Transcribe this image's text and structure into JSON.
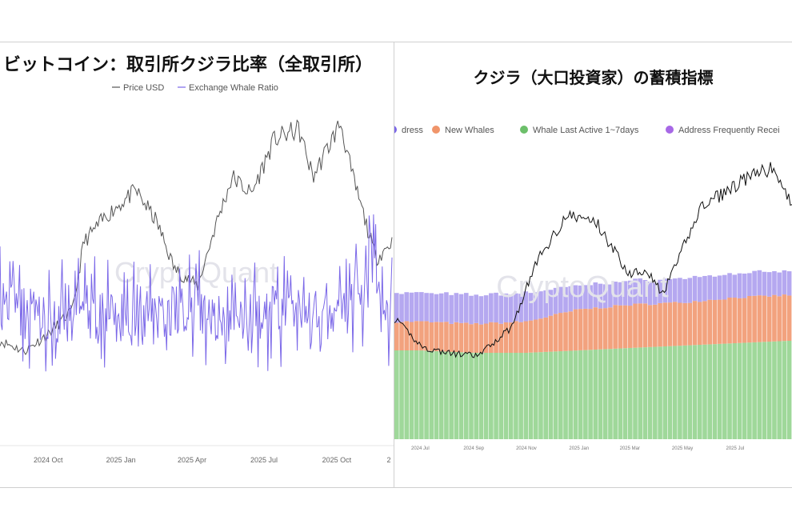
{
  "left": {
    "title": "ビットコイン：取引所クジラ比率（全取引所）",
    "watermark": "CryptoQuant",
    "colors": {
      "price": "#555555",
      "ratio": "#7b68e8"
    },
    "chart_data": {
      "type": "line",
      "series": [
        {
          "name": "Price USD",
          "x": [
            "2024-08-01",
            "2024-09-01",
            "2024-10-01",
            "2024-11-01",
            "2024-11-15",
            "2024-12-15",
            "2025-01-20",
            "2025-02-15",
            "2025-03-10",
            "2025-04-08",
            "2025-05-01",
            "2025-05-22",
            "2025-06-15",
            "2025-07-14",
            "2025-08-14",
            "2025-09-01",
            "2025-10-06",
            "2025-10-20",
            "2025-11-20",
            "2025-12-10"
          ],
          "values": [
            61000,
            58000,
            63000,
            70000,
            90000,
            98000,
            105000,
            96000,
            82000,
            77000,
            95000,
            109000,
            104000,
            120000,
            123000,
            109000,
            125000,
            110000,
            85000,
            90000
          ]
        },
        {
          "name": "Exchange Whale Ratio",
          "x": [
            "2024-08-01",
            "2024-10-01",
            "2024-12-01",
            "2025-02-01",
            "2025-04-01",
            "2025-06-01",
            "2025-08-01",
            "2025-10-01",
            "2025-11-01",
            "2025-12-10"
          ],
          "values": [
            0.45,
            0.43,
            0.44,
            0.42,
            0.45,
            0.43,
            0.44,
            0.42,
            0.48,
            0.44
          ]
        }
      ],
      "x_ticks": [
        "2024 Oct",
        "2025 Jan",
        "2025 Apr",
        "2025 Jul",
        "2025 Oct",
        "2"
      ]
    }
  },
  "right": {
    "title": "クジラ（大口投資家）の蓄積指標",
    "watermark": "CryptoQuant",
    "colors": {
      "green": "#9fd89a",
      "orange": "#f2a27e",
      "purple": "#b5a8f0",
      "price": "#111111"
    },
    "legend": [
      {
        "label": "dress",
        "color": "#7b68e8"
      },
      {
        "label": "New Whales",
        "color": "#f0956a"
      },
      {
        "label": "Whale Last Active 1~7days",
        "color": "#6cbf6a"
      },
      {
        "label": "Address Frequently Recei",
        "color": "#a768e6"
      }
    ],
    "chart_data": {
      "type": "area",
      "x": [
        "2024-06",
        "2024-07",
        "2024-09",
        "2024-11",
        "2025-01",
        "2025-03",
        "2025-05",
        "2025-07",
        "2025-09"
      ],
      "series": [
        {
          "name": "Whale Last Active 1~7days",
          "values": [
            0.37,
            0.37,
            0.36,
            0.36,
            0.37,
            0.38,
            0.39,
            0.4,
            0.41
          ]
        },
        {
          "name": "New Whales",
          "values": [
            0.12,
            0.12,
            0.12,
            0.13,
            0.17,
            0.18,
            0.18,
            0.19,
            0.19
          ]
        },
        {
          "name": "Address Frequently Recei",
          "values": [
            0.12,
            0.12,
            0.12,
            0.12,
            0.1,
            0.1,
            0.1,
            0.1,
            0.1
          ]
        },
        {
          "name": "Price USD",
          "x": [
            "2024-06-01",
            "2024-07-05",
            "2024-08-05",
            "2024-09-06",
            "2024-10-15",
            "2024-11-12",
            "2024-12-17",
            "2025-01-20",
            "2025-02-28",
            "2025-03-20",
            "2025-04-08",
            "2025-05-22",
            "2025-07-14",
            "2025-08-14",
            "2025-09-01"
          ],
          "values": [
            67000,
            56000,
            54000,
            53000,
            64000,
            88000,
            106000,
            104000,
            84000,
            86000,
            76000,
            109000,
            120000,
            124000,
            112000
          ]
        }
      ],
      "x_ticks": [
        "2024 Jul",
        "2024 Sep",
        "2024 Nov",
        "2025 Jan",
        "2025 Mar",
        "2025 May",
        "2025 Jul"
      ]
    }
  }
}
